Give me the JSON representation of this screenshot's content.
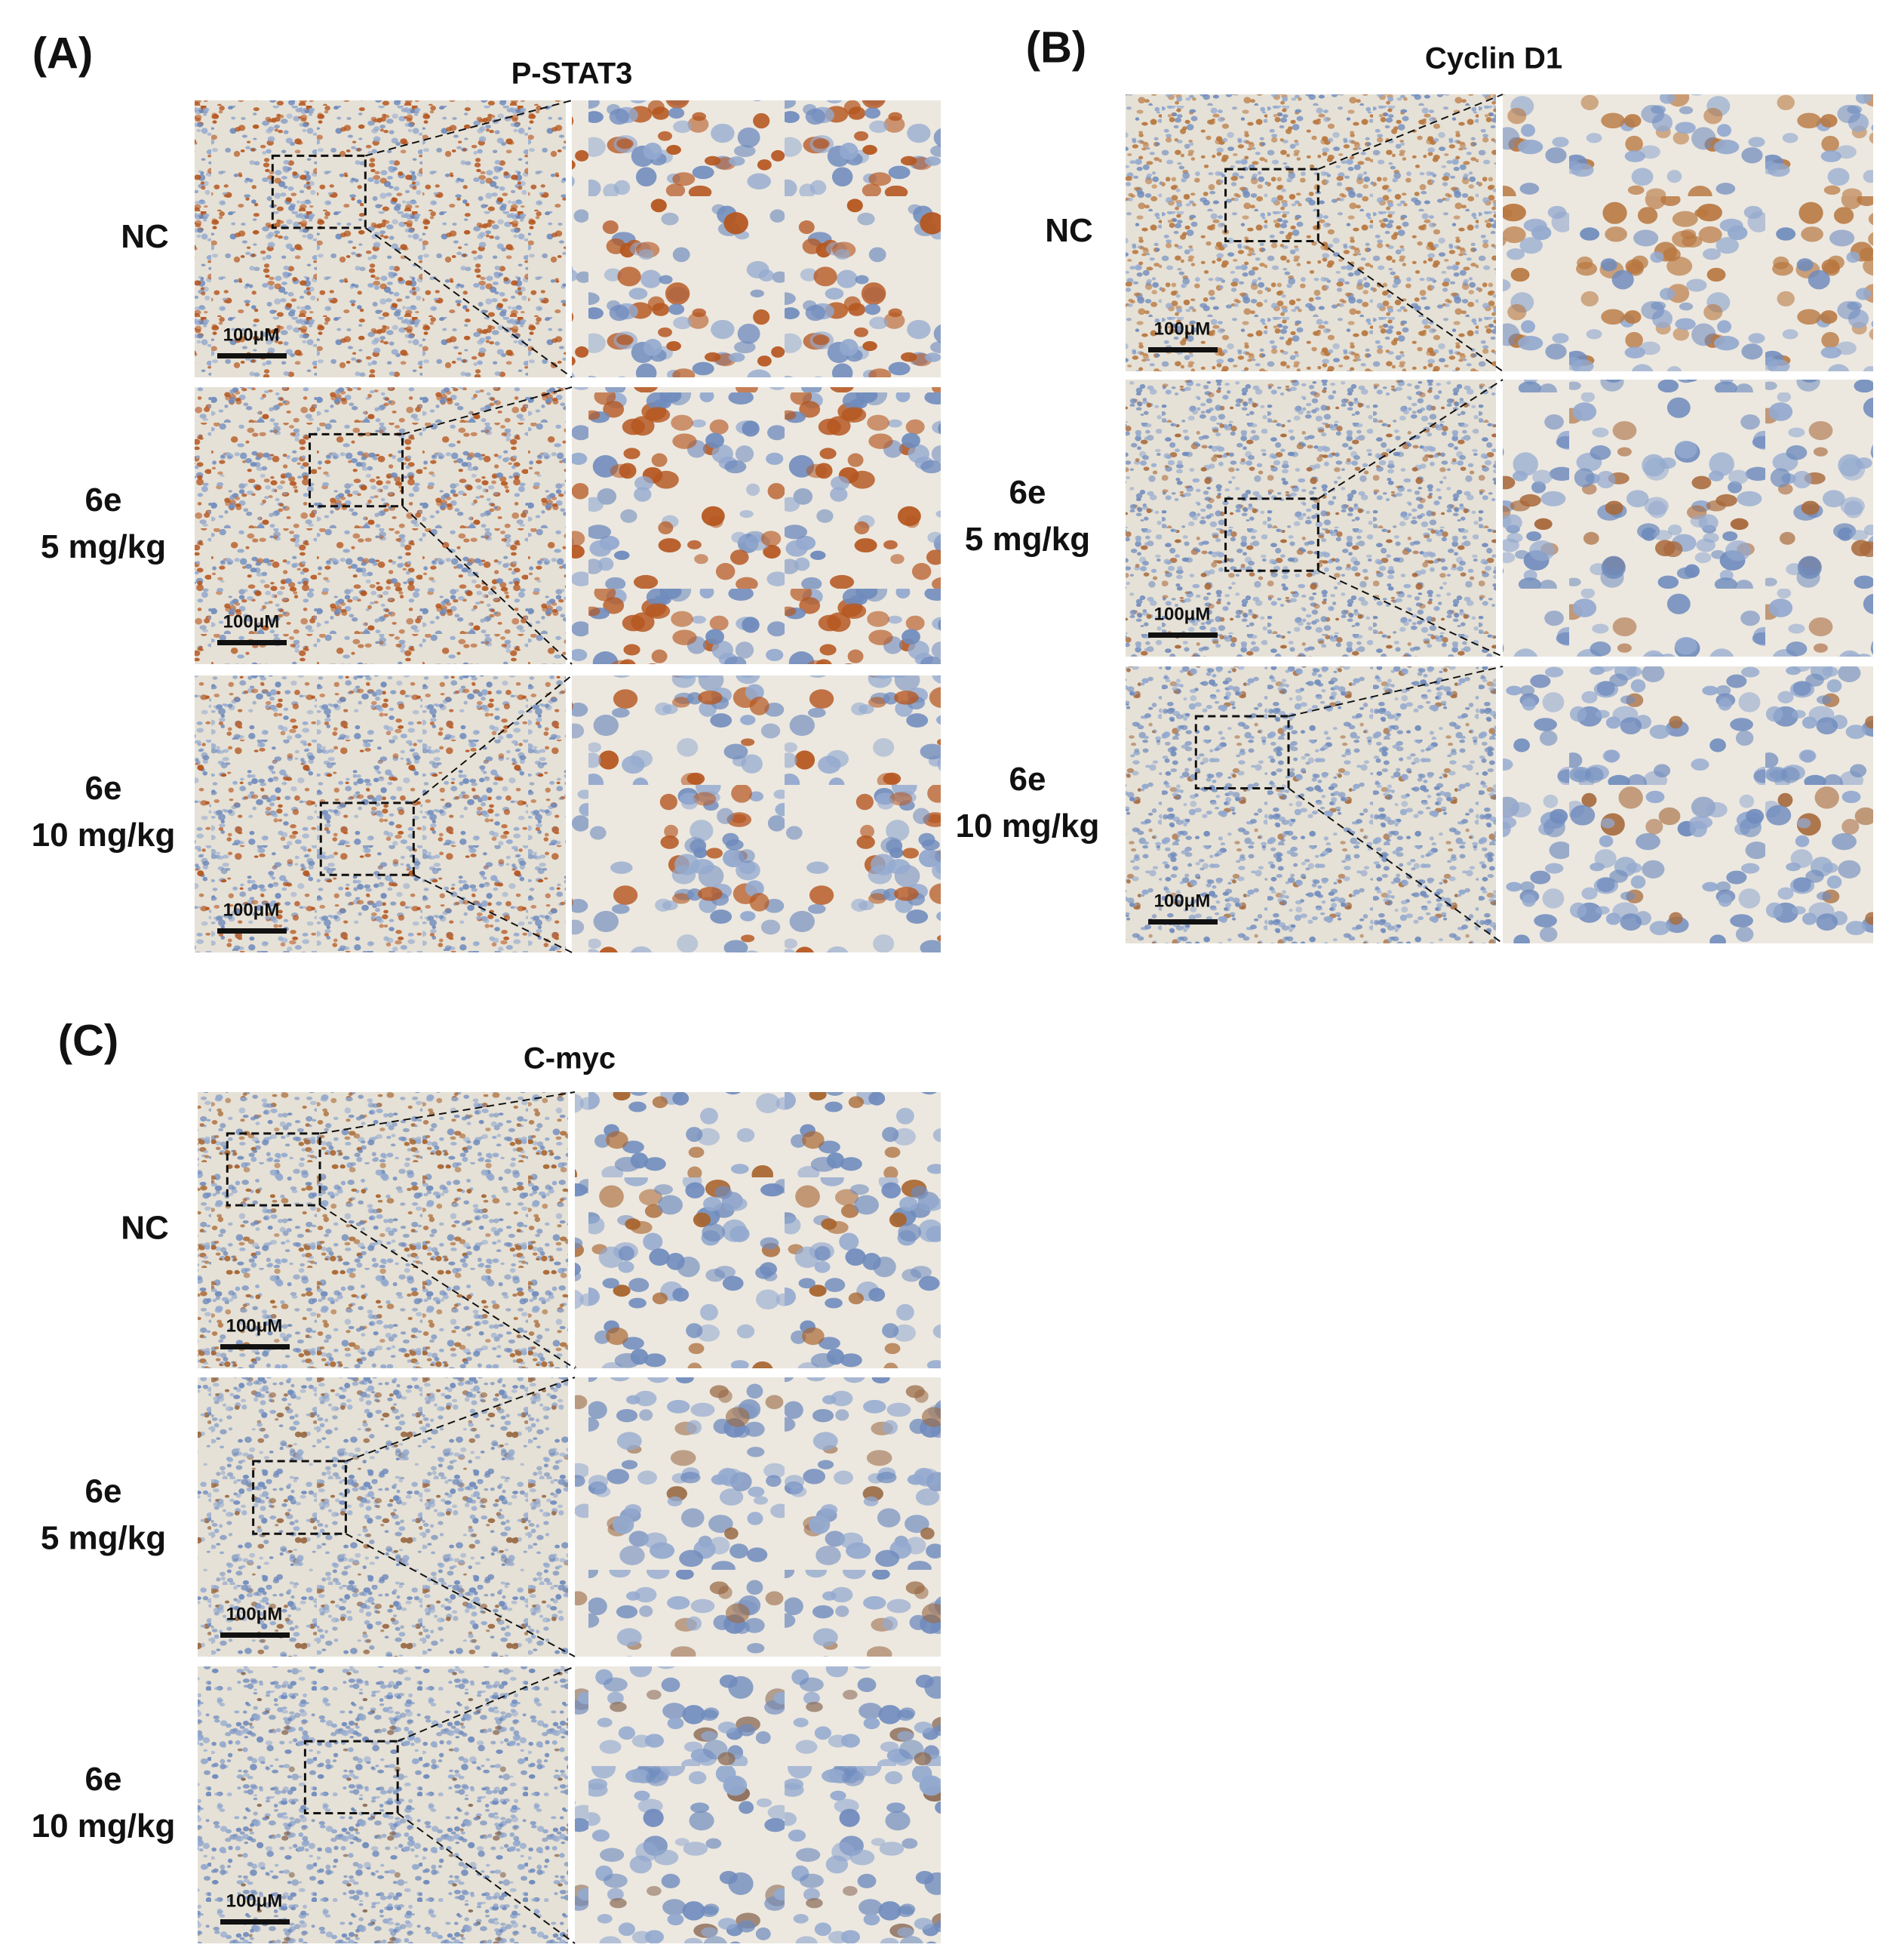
{
  "scale_bar": "100μM",
  "panels": [
    {
      "label": "(A)",
      "title": "P-STAT3",
      "rows": [
        {
          "lines": [
            "NC"
          ]
        },
        {
          "lines": [
            "6e",
            "5 mg/kg"
          ]
        },
        {
          "lines": [
            "6e",
            "10 mg/kg"
          ]
        }
      ]
    },
    {
      "label": "(B)",
      "title": "Cyclin D1",
      "rows": [
        {
          "lines": [
            "NC"
          ]
        },
        {
          "lines": [
            "6e",
            "5 mg/kg"
          ]
        },
        {
          "lines": [
            "6e",
            "10 mg/kg"
          ]
        }
      ]
    },
    {
      "label": "(C)",
      "title": "C-myc",
      "rows": [
        {
          "lines": [
            "NC"
          ]
        },
        {
          "lines": [
            "6e",
            "5 mg/kg"
          ]
        },
        {
          "lines": [
            "6e",
            "10 mg/kg"
          ]
        }
      ]
    }
  ]
}
